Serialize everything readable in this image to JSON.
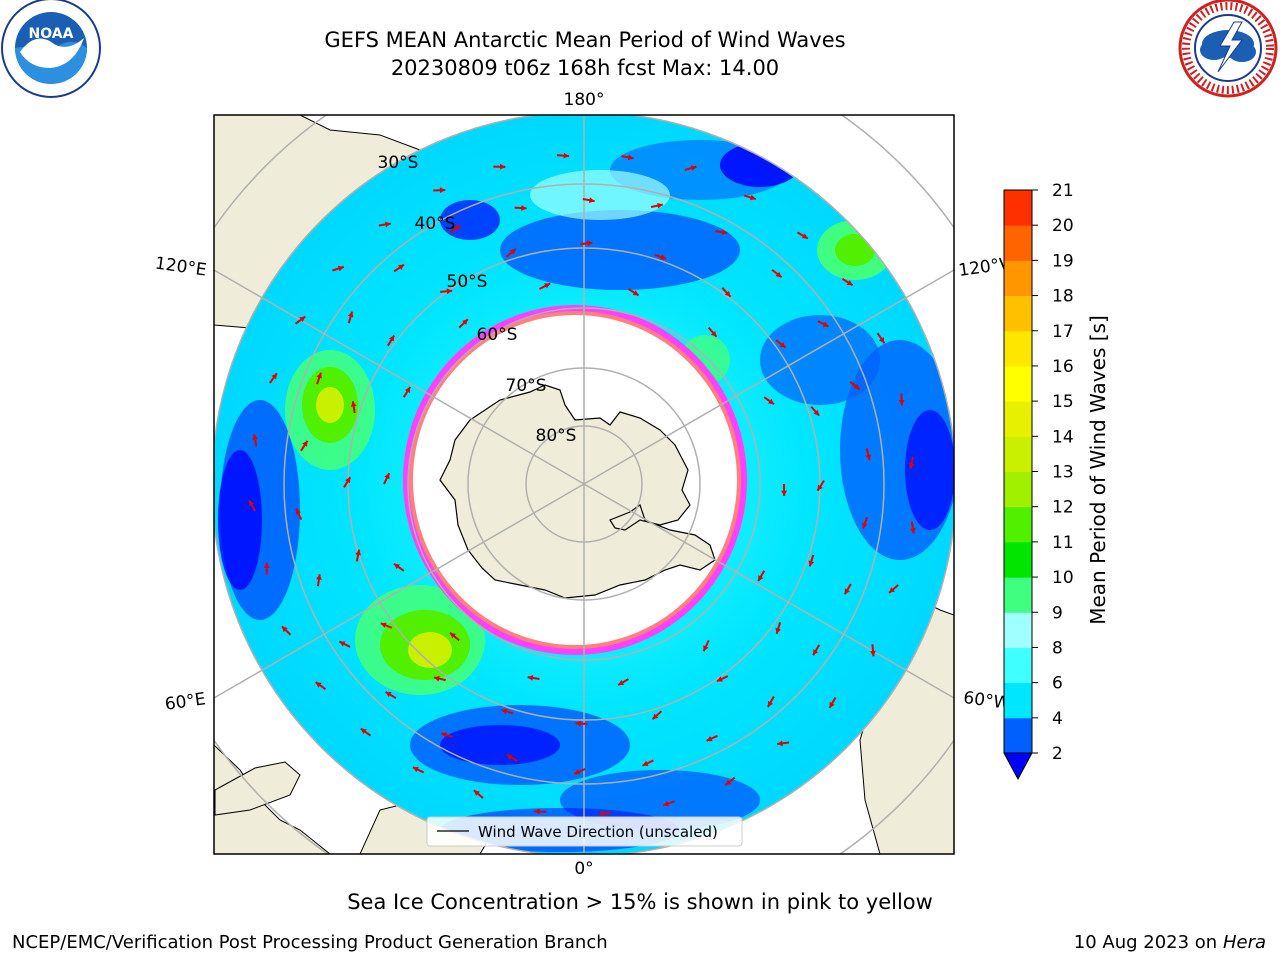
{
  "header": {
    "title_line1": "GEFS MEAN Antarctic Mean Period of Wind Waves",
    "title_line2": "20230809 t06z 168h fcst   Max: 14.00"
  },
  "logos": {
    "left": "NOAA",
    "left_ring_text": "NATIONAL OCEANIC AND ATMOSPHERIC ADMINISTRATION · U.S. DEPARTMENT OF COMMERCE",
    "right_ring_text": "NATIONAL WEATHER SERVICE"
  },
  "map": {
    "longitude_labels": {
      "top": "180°",
      "bottom": "0°",
      "upper_left": "120°E",
      "upper_right": "120°W",
      "lower_left": "60°E",
      "lower_right": "60°W"
    },
    "latitude_labels": [
      "30°S",
      "40°S",
      "50°S",
      "60°S",
      "70°S",
      "80°S"
    ],
    "legend_label": "Wind Wave Direction (unscaled)",
    "colors": {
      "land": "#efedd9",
      "ice_edge": "#ff40ff",
      "arrow": "#e00000"
    }
  },
  "colorbar": {
    "label": "Mean Period of Wind Waves [s]",
    "ticks": [
      "2",
      "4",
      "6",
      "8",
      "9",
      "10",
      "11",
      "12",
      "13",
      "14",
      "15",
      "16",
      "17",
      "18",
      "19",
      "20",
      "21"
    ],
    "colors": [
      "#0060ff",
      "#00e6ff",
      "#40ffff",
      "#a0ffff",
      "#40ff80",
      "#00e600",
      "#50f000",
      "#a0f000",
      "#c8f000",
      "#e6f000",
      "#ffff00",
      "#ffe600",
      "#ffc000",
      "#ff9600",
      "#ff6400",
      "#ff3000",
      "#ff0000"
    ],
    "under_color": "#0000ff"
  },
  "footer": {
    "note": "Sea Ice Concentration > 15% is shown in pink to yellow",
    "left": "NCEP/EMC/Verification Post Processing Product Generation Branch",
    "right_date": "10 Aug 2023 on",
    "right_host": "Hera"
  }
}
